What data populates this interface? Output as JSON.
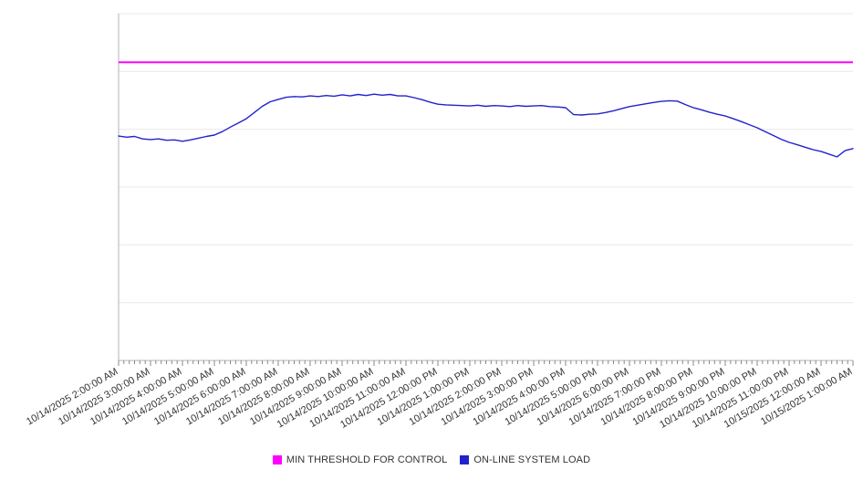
{
  "chart_data": {
    "type": "line",
    "title": "",
    "xlabel": "",
    "ylabel": "",
    "ylim": [
      0,
      100
    ],
    "y_axis_labels_visible": false,
    "grid": "horizontal",
    "grid_divisions": 6,
    "legend_position": "bottom",
    "x_tick_interval": "1 hour",
    "x_minor_tick_interval": "10 minutes",
    "x_labels": [
      "10/14/2025 2:00:00 AM",
      "10/14/2025 3:00:00 AM",
      "10/14/2025 4:00:00 AM",
      "10/14/2025 5:00:00 AM",
      "10/14/2025 6:00:00 AM",
      "10/14/2025 7:00:00 AM",
      "10/14/2025 8:00:00 AM",
      "10/14/2025 9:00:00 AM",
      "10/14/2025 10:00:00 AM",
      "10/14/2025 11:00:00 AM",
      "10/14/2025 12:00:00 PM",
      "10/14/2025 1:00:00 PM",
      "10/14/2025 2:00:00 PM",
      "10/14/2025 3:00:00 PM",
      "10/14/2025 4:00:00 PM",
      "10/14/2025 5:00:00 PM",
      "10/14/2025 6:00:00 PM",
      "10/14/2025 7:00:00 PM",
      "10/14/2025 8:00:00 PM",
      "10/14/2025 9:00:00 PM",
      "10/14/2025 10:00:00 PM",
      "10/14/2025 11:00:00 PM",
      "10/15/2025 12:00:00 AM",
      "10/15/2025 1:00:00 AM"
    ],
    "series": [
      {
        "name": "MIN THRESHOLD FOR CONTROL",
        "type": "threshold",
        "color": "#ff00ff",
        "value": 86
      },
      {
        "name": "ON-LINE SYSTEM LOAD",
        "type": "line",
        "color": "#2222cc",
        "points_per_hour": 4,
        "values": [
          64.7,
          64.4,
          64.6,
          63.9,
          63.7,
          63.9,
          63.5,
          63.6,
          63.2,
          63.6,
          64.1,
          64.6,
          65.0,
          66.0,
          67.3,
          68.5,
          69.7,
          71.5,
          73.3,
          74.6,
          75.3,
          75.9,
          76.1,
          76.0,
          76.3,
          76.1,
          76.4,
          76.2,
          76.6,
          76.3,
          76.7,
          76.4,
          76.8,
          76.5,
          76.7,
          76.3,
          76.3,
          75.8,
          75.2,
          74.5,
          73.9,
          73.7,
          73.6,
          73.5,
          73.4,
          73.6,
          73.3,
          73.5,
          73.4,
          73.2,
          73.5,
          73.3,
          73.4,
          73.5,
          73.2,
          73.1,
          72.9,
          70.9,
          70.8,
          71.0,
          71.1,
          71.5,
          72.0,
          72.6,
          73.2,
          73.6,
          74.0,
          74.4,
          74.7,
          74.9,
          74.8,
          73.8,
          72.9,
          72.3,
          71.6,
          71.0,
          70.5,
          69.7,
          68.9,
          68.0,
          67.1,
          66.0,
          64.9,
          63.8,
          62.9,
          62.2,
          61.5,
          60.8,
          60.3,
          59.5,
          58.7,
          60.5,
          61.1
        ]
      }
    ],
    "colors": {
      "gridline": "#e8e8e8",
      "axis": "#b3b3b3",
      "tick": "#888888",
      "tick_label": "#333333"
    }
  }
}
